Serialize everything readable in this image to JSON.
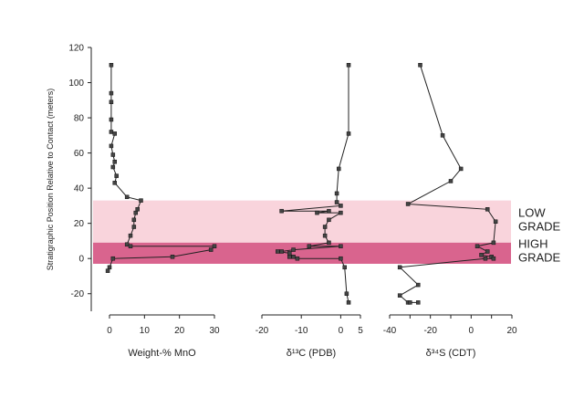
{
  "chart_data": {
    "type": "line",
    "y_axis": {
      "label": "Stratigraphic Position Relative to Contact (meters)",
      "range": [
        -30,
        120
      ],
      "ticks": [
        -20,
        0,
        20,
        40,
        60,
        80,
        100,
        120
      ]
    },
    "bands": [
      {
        "label_lines": [
          "LOW",
          "GRADE"
        ],
        "from": 8,
        "to": 33,
        "color": "#f9d4dc"
      },
      {
        "label_lines": [
          "HIGH",
          "GRADE"
        ],
        "from": -3,
        "to": 9,
        "color": "#d9648e"
      }
    ],
    "panels": [
      {
        "xlabel": "Weight-% MnO",
        "range": [
          0,
          30
        ],
        "ticks": [
          0,
          10,
          20,
          30
        ],
        "points": [
          [
            0.5,
            110
          ],
          [
            0.5,
            94
          ],
          [
            0.5,
            89
          ],
          [
            0.5,
            79
          ],
          [
            0.5,
            72
          ],
          [
            1.5,
            71
          ],
          [
            0.5,
            64
          ],
          [
            1,
            59
          ],
          [
            1.5,
            55
          ],
          [
            1,
            52
          ],
          [
            2,
            47
          ],
          [
            1.5,
            43
          ],
          [
            5,
            35
          ],
          [
            9,
            33
          ],
          [
            8,
            28
          ],
          [
            7.5,
            26
          ],
          [
            7,
            22
          ],
          [
            7,
            18
          ],
          [
            6,
            13
          ],
          [
            5,
            8
          ],
          [
            6,
            7
          ],
          [
            30,
            7
          ],
          [
            29,
            5
          ],
          [
            18,
            1
          ],
          [
            1,
            0
          ],
          [
            0,
            -5
          ],
          [
            -0.5,
            -7
          ]
        ]
      },
      {
        "xlabel": "δ¹³C (PDB)",
        "range": [
          -20,
          5
        ],
        "ticks": [
          -20,
          -10,
          0,
          5
        ],
        "tick_labels": [
          "-20",
          "-10",
          "0",
          "5"
        ],
        "points": [
          [
            2,
            110
          ],
          [
            2,
            71
          ],
          [
            -0.5,
            51
          ],
          [
            -1,
            37
          ],
          [
            -1,
            32
          ],
          [
            0,
            30
          ],
          [
            -15,
            27
          ],
          [
            -3,
            27
          ],
          [
            -6,
            26
          ],
          [
            0,
            26
          ],
          [
            -3,
            22
          ],
          [
            -4,
            18
          ],
          [
            -4,
            13
          ],
          [
            -3,
            9
          ],
          [
            -8,
            7
          ],
          [
            0,
            7
          ],
          [
            -12,
            5
          ],
          [
            -15,
            4
          ],
          [
            -16,
            4
          ],
          [
            -13,
            3
          ],
          [
            -12,
            1
          ],
          [
            -13,
            1
          ],
          [
            -11,
            0
          ],
          [
            0,
            0
          ],
          [
            1,
            -5
          ],
          [
            1.5,
            -20
          ],
          [
            2,
            -25
          ]
        ]
      },
      {
        "xlabel": "δ³⁴S (CDT)",
        "range": [
          -40,
          20
        ],
        "ticks": [
          -40,
          -30,
          -20,
          -10,
          0,
          10,
          20
        ],
        "tick_labels": [
          "-40",
          "-20",
          "0",
          "20"
        ],
        "tick_label_values": [
          -40,
          -20,
          0,
          20
        ],
        "points": [
          [
            -25,
            110
          ],
          [
            -14,
            70
          ],
          [
            -5,
            51
          ],
          [
            -10,
            44
          ],
          [
            -31,
            31
          ],
          [
            8,
            28
          ],
          [
            12,
            21
          ],
          [
            11,
            9
          ],
          [
            3,
            7
          ],
          [
            8,
            4
          ],
          [
            5,
            2
          ],
          [
            10,
            1
          ],
          [
            11,
            0
          ],
          [
            7,
            0
          ],
          [
            -35,
            -5
          ],
          [
            -26,
            -15
          ],
          [
            -35,
            -21
          ],
          [
            -31,
            -25
          ],
          [
            -26,
            -25
          ],
          [
            -30,
            -25
          ]
        ]
      }
    ]
  }
}
